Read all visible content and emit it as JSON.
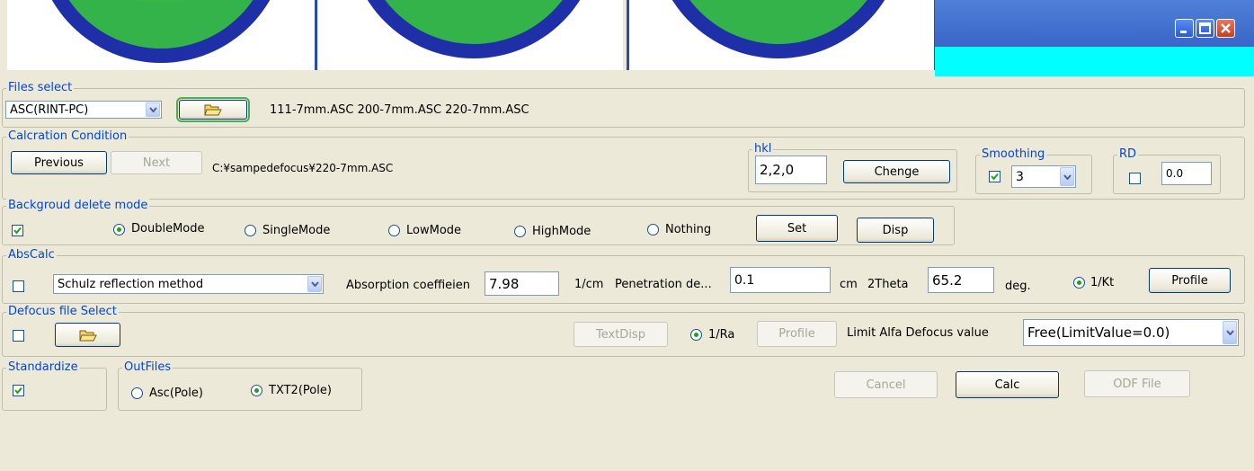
{
  "files_select": {
    "legend": "Files select",
    "format_value": "ASC(RINT-PC)",
    "file_list": "111-7mm.ASC 200-7mm.ASC 220-7mm.ASC"
  },
  "calc_condition": {
    "legend": "Calcration Condition",
    "previous_label": "Previous",
    "next_label": "Next",
    "path": "C:¥sampedefocus¥220-7mm.ASC",
    "hkl": {
      "legend": "hkl",
      "value": "2,2,0",
      "change_label": "Chenge"
    },
    "smoothing": {
      "legend": "Smoothing",
      "checked": true,
      "value": "3"
    },
    "rd": {
      "legend": "RD",
      "checked": false,
      "value": "0.0"
    }
  },
  "background": {
    "legend": "Backgroud delete mode",
    "checked": true,
    "modes": [
      "DoubleMode",
      "SingleMode",
      "LowMode",
      "HighMode",
      "Nothing"
    ],
    "selected": "DoubleMode",
    "set_label": "Set",
    "disp_label": "Disp"
  },
  "abscalc": {
    "legend": "AbsCalc",
    "checked": false,
    "method_value": "Schulz reflection method",
    "abs_label": "Absorption coeffieien",
    "abs_value": "7.98",
    "abs_unit": "1/cm",
    "pen_label": "Penetration de...",
    "pen_value": "0.1",
    "pen_unit": "cm",
    "theta_label": "2Theta",
    "theta_value": "65.2",
    "theta_unit": "deg.",
    "kt_label": "1/Kt",
    "profile_label": "Profile"
  },
  "defocus": {
    "legend": "Defocus file Select",
    "checked": false,
    "textdisp_label": "TextDisp",
    "ra_label": "1/Ra",
    "profile_label": "Profile",
    "limit_label": "Limit Alfa Defocus value",
    "limit_value": "Free(LimitValue=0.0)"
  },
  "standardize": {
    "legend": "Standardize",
    "checked": true
  },
  "outfiles": {
    "legend": "OutFiles",
    "options": [
      "Asc(Pole)",
      "TXT2(Pole)"
    ],
    "selected": "TXT2(Pole)"
  },
  "actions": {
    "cancel_label": "Cancel",
    "calc_label": "Calc",
    "odf_label": "ODF File"
  },
  "colors": {
    "accent_blue": "#0046d5",
    "title_blue": "#3a66c8",
    "cyan": "#00ffff",
    "radio_green": "#21a121"
  },
  "icons": [
    "open-folder-icon",
    "minimize-icon",
    "maximize-icon",
    "close-icon"
  ]
}
